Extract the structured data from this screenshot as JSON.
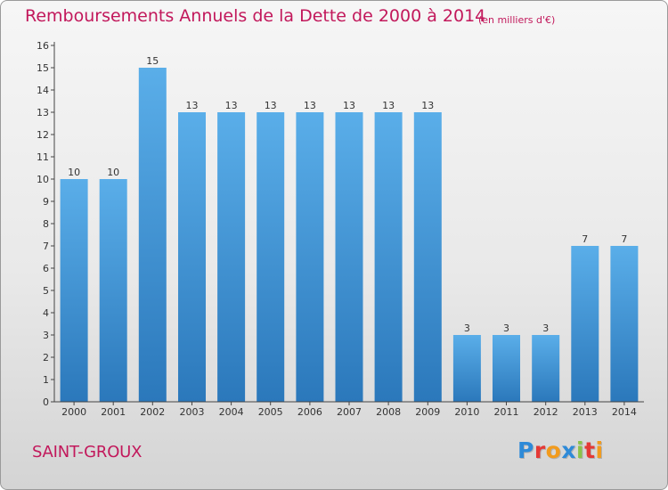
{
  "header": {
    "title": "Remboursements Annuels de la Dette de 2000 à 2014",
    "unit": "(en milliers d'€)"
  },
  "footer": {
    "commune": "SAINT-GROUX",
    "logo_text": "Proxiti",
    "logo_colors": [
      "#2e8ad8",
      "#e53935",
      "#f29b1d",
      "#2e8ad8",
      "#8bc34a",
      "#e53935",
      "#f29b1d"
    ]
  },
  "colors": {
    "title": "#c2185b",
    "bar_top": "#5aaee9",
    "bar_bottom": "#2b78bb",
    "axis": "#444444"
  },
  "chart_data": {
    "type": "bar",
    "title": "Remboursements Annuels de la Dette de 2000 à 2014",
    "subtitle": "(en milliers d'€)",
    "xlabel": "",
    "ylabel": "",
    "categories": [
      "2000",
      "2001",
      "2002",
      "2003",
      "2004",
      "2005",
      "2006",
      "2007",
      "2008",
      "2009",
      "2010",
      "2011",
      "2012",
      "2013",
      "2014"
    ],
    "values": [
      10,
      10,
      15,
      13,
      13,
      13,
      13,
      13,
      13,
      13,
      3,
      3,
      3,
      7,
      7
    ],
    "data_labels": [
      "10",
      "10",
      "15",
      "13",
      "13",
      "13",
      "13",
      "13",
      "13",
      "13",
      "3",
      "3",
      "3",
      "7",
      "7"
    ],
    "ylim": [
      0,
      16
    ],
    "yticks": [
      "0",
      "1",
      "2",
      "3",
      "4",
      "5",
      "6",
      "7",
      "8",
      "9",
      "10",
      "11",
      "12",
      "13",
      "14",
      "15",
      "16"
    ],
    "grid": false,
    "legend": "none"
  }
}
